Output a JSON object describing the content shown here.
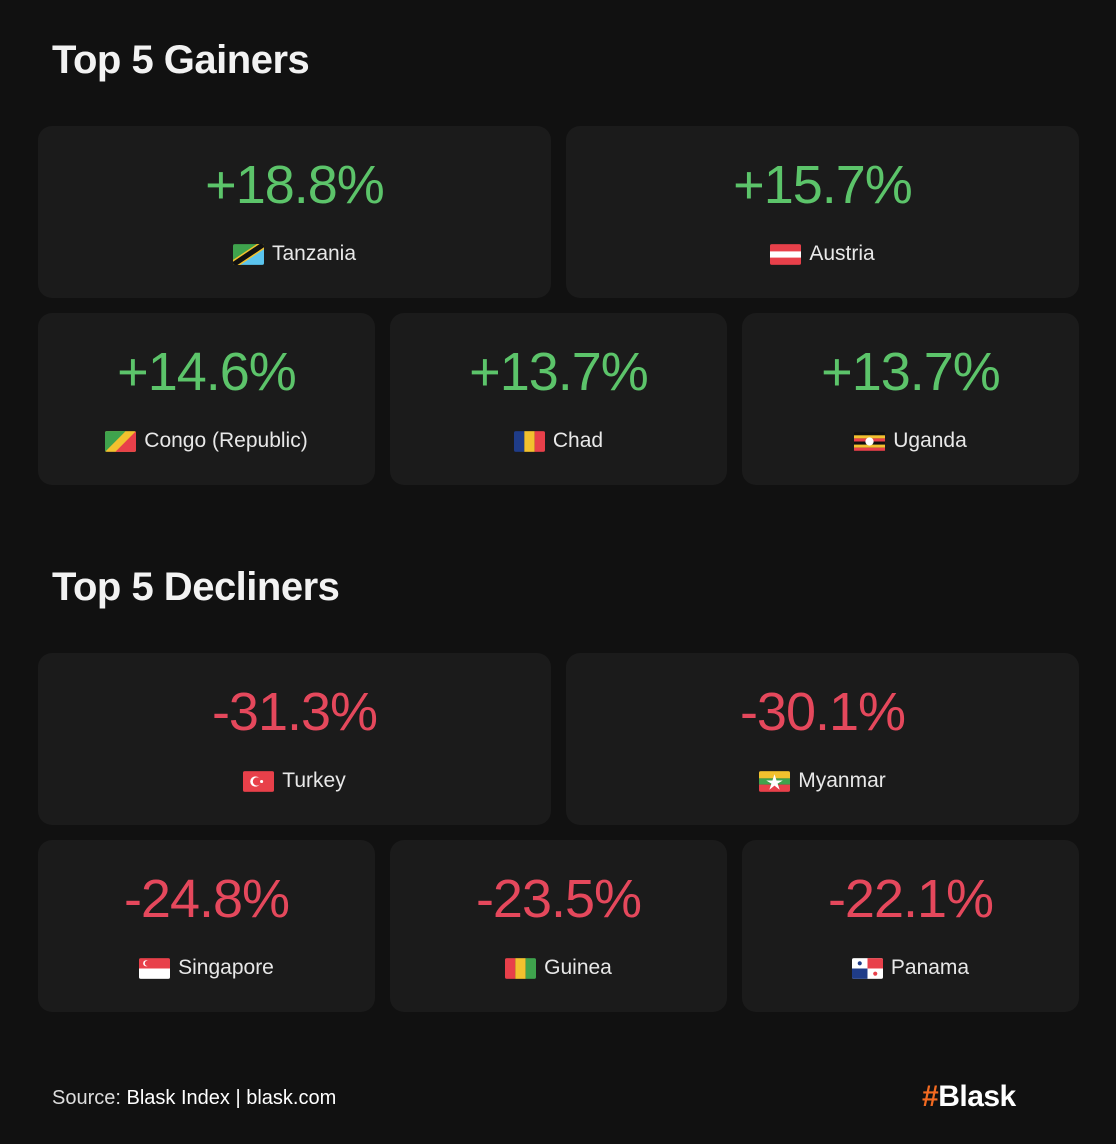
{
  "gainers": {
    "title": "Top 5 Gainers",
    "items": [
      {
        "value": "+18.8%",
        "country": "Tanzania",
        "flag": "tanzania-flag-icon"
      },
      {
        "value": "+15.7%",
        "country": "Austria",
        "flag": "austria-flag-icon"
      },
      {
        "value": "+14.6%",
        "country": "Congo (Republic)",
        "flag": "congo-flag-icon"
      },
      {
        "value": "+13.7%",
        "country": "Chad",
        "flag": "chad-flag-icon"
      },
      {
        "value": "+13.7%",
        "country": "Uganda",
        "flag": "uganda-flag-icon"
      }
    ]
  },
  "decliners": {
    "title": "Top 5 Decliners",
    "items": [
      {
        "value": "-31.3%",
        "country": "Turkey",
        "flag": "turkey-flag-icon"
      },
      {
        "value": "-30.1%",
        "country": "Myanmar",
        "flag": "myanmar-flag-icon"
      },
      {
        "value": "-24.8%",
        "country": "Singapore",
        "flag": "singapore-flag-icon"
      },
      {
        "value": "-23.5%",
        "country": "Guinea",
        "flag": "guinea-flag-icon"
      },
      {
        "value": "-22.1%",
        "country": "Panama",
        "flag": "panama-flag-icon"
      }
    ]
  },
  "footer": {
    "source_label": "Source:",
    "source": "Blask Index",
    "separator": "|",
    "site": "blask.com"
  },
  "logo": {
    "hash": "#",
    "name": "Blask"
  },
  "colors": {
    "positive": "#5cc46a",
    "negative": "#e5485c",
    "background": "#111111",
    "card": "#1b1b1b",
    "brand": "#f26a21"
  }
}
